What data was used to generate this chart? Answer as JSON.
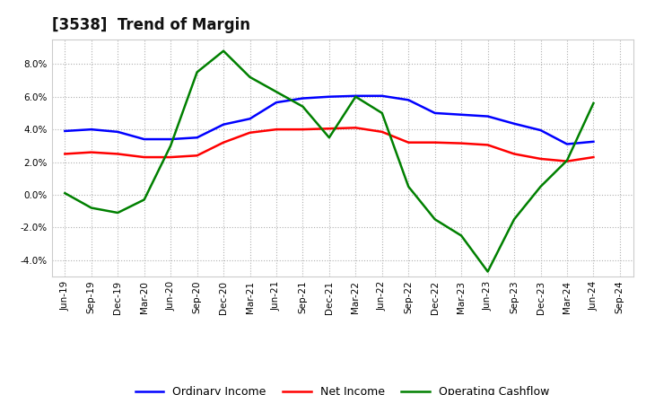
{
  "title": "[3538]  Trend of Margin",
  "x_labels": [
    "Jun-19",
    "Sep-19",
    "Dec-19",
    "Mar-20",
    "Jun-20",
    "Sep-20",
    "Dec-20",
    "Mar-21",
    "Jun-21",
    "Sep-21",
    "Dec-21",
    "Mar-22",
    "Jun-22",
    "Sep-22",
    "Dec-22",
    "Mar-23",
    "Jun-23",
    "Sep-23",
    "Dec-23",
    "Mar-24",
    "Jun-24",
    "Sep-24"
  ],
  "ordinary_income": [
    3.9,
    4.0,
    3.85,
    3.4,
    3.4,
    3.5,
    4.3,
    4.65,
    5.65,
    5.9,
    6.0,
    6.05,
    6.05,
    5.8,
    5.0,
    4.9,
    4.8,
    4.35,
    3.95,
    3.1,
    3.25,
    null
  ],
  "net_income": [
    2.5,
    2.6,
    2.5,
    2.3,
    2.3,
    2.4,
    3.2,
    3.8,
    4.0,
    4.0,
    4.05,
    4.1,
    3.85,
    3.2,
    3.2,
    3.15,
    3.05,
    2.5,
    2.2,
    2.05,
    2.3,
    null
  ],
  "operating_cashflow": [
    0.1,
    -0.8,
    -1.1,
    -0.3,
    3.0,
    7.5,
    8.8,
    7.2,
    6.3,
    5.4,
    3.5,
    6.0,
    5.0,
    0.5,
    -1.5,
    -2.5,
    -4.7,
    -1.5,
    0.5,
    2.1,
    5.6,
    null
  ],
  "ordinary_income_color": "#0000ff",
  "net_income_color": "#ff0000",
  "operating_cashflow_color": "#008000",
  "ylim": [
    -5.0,
    9.5
  ],
  "yticks": [
    -4.0,
    -2.0,
    0.0,
    2.0,
    4.0,
    6.0,
    8.0
  ],
  "background_color": "#ffffff",
  "grid_color": "#b0b0b0",
  "title_fontsize": 12,
  "tick_fontsize": 7.5,
  "legend_fontsize": 9
}
